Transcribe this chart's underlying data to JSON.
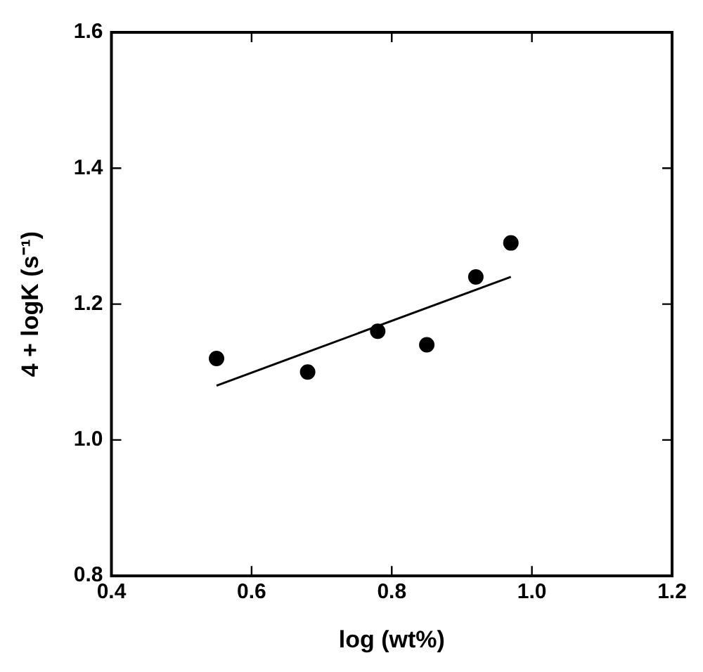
{
  "chart_data": {
    "type": "scatter",
    "xlabel": "log (wt%)",
    "ylabel": "4 + logK (s⁻¹)",
    "xlim": [
      0.4,
      1.2
    ],
    "xticks": [
      0.4,
      0.6,
      0.8,
      {
        "value": 1,
        "label": "1.0"
      },
      1.2
    ],
    "ylim": [
      0.8,
      1.6
    ],
    "yticks": [
      0.8,
      {
        "value": 1,
        "label": "1.0"
      },
      1.2,
      1.4,
      1.6
    ],
    "grid": false,
    "legend": false,
    "marker": "circle",
    "series": [
      {
        "type": "scatter",
        "color": "#000000",
        "x": [
          0.55,
          0.68,
          0.78,
          0.85,
          0.92,
          0.97
        ],
        "values": [
          1.12,
          1.1,
          1.16,
          1.14,
          1.24,
          1.29
        ]
      },
      {
        "type": "line",
        "color": "#000000",
        "marker": "none",
        "x": [
          0.55,
          0.97
        ],
        "values": [
          1.08,
          1.24
        ]
      }
    ]
  }
}
